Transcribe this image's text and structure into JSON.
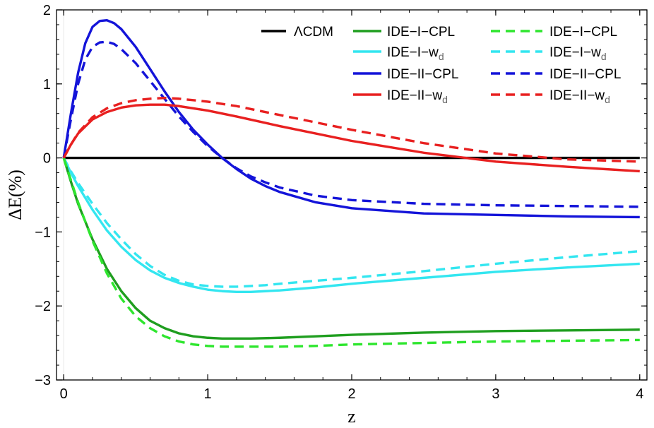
{
  "chart_data": {
    "type": "line",
    "xlabel": "z",
    "ylabel": "ΔE(%)",
    "xlim": [
      -0.05,
      4.05
    ],
    "ylim": [
      -3,
      2
    ],
    "xticks": [
      "0",
      "1",
      "2",
      "3",
      "4"
    ],
    "yticks": [
      "2",
      "1",
      "0",
      "−1",
      "−2",
      "−3"
    ],
    "legend_position": "top-right",
    "grid": false,
    "series": [
      {
        "key": "lcdm",
        "name": "ΛCDM",
        "label_main": "ΛCDM",
        "label_sub": "",
        "color": "#000000",
        "dashed": false,
        "x": [
          0,
          4
        ],
        "y": [
          0,
          0
        ]
      },
      {
        "key": "ide1_wd",
        "name": "IDE−I−wd",
        "label_main": "IDE−I−w",
        "label_sub": "d",
        "color": "#33e6f0",
        "dashed": false,
        "x": [
          0,
          0.05,
          0.1,
          0.2,
          0.3,
          0.4,
          0.5,
          0.6,
          0.7,
          0.8,
          0.9,
          1.0,
          1.1,
          1.2,
          1.3,
          1.4,
          1.5,
          1.75,
          2.0,
          2.5,
          3.0,
          3.5,
          4.0
        ],
        "y": [
          0,
          -0.2,
          -0.38,
          -0.7,
          -0.98,
          -1.2,
          -1.38,
          -1.52,
          -1.62,
          -1.69,
          -1.74,
          -1.78,
          -1.8,
          -1.81,
          -1.81,
          -1.8,
          -1.79,
          -1.75,
          -1.7,
          -1.62,
          -1.54,
          -1.48,
          -1.43
        ]
      },
      {
        "key": "ide1_wd_dash",
        "name": "IDE−I−wd",
        "label_main": "IDE−I−w",
        "label_sub": "d",
        "color": "#33e6f0",
        "dashed": true,
        "x": [
          0,
          0.05,
          0.1,
          0.2,
          0.3,
          0.4,
          0.5,
          0.6,
          0.7,
          0.8,
          0.9,
          1.0,
          1.1,
          1.2,
          1.3,
          1.4,
          1.5,
          1.75,
          2.0,
          2.5,
          3.0,
          3.5,
          4.0
        ],
        "y": [
          0,
          -0.18,
          -0.34,
          -0.62,
          -0.88,
          -1.1,
          -1.3,
          -1.46,
          -1.58,
          -1.66,
          -1.71,
          -1.73,
          -1.74,
          -1.74,
          -1.73,
          -1.72,
          -1.7,
          -1.66,
          -1.62,
          -1.53,
          -1.43,
          -1.34,
          -1.26
        ]
      },
      {
        "key": "ide1_cpl",
        "name": "IDE−I−CPL",
        "label_main": "IDE−I−CPL",
        "label_sub": "",
        "color": "#1f9e1f",
        "dashed": false,
        "x": [
          0,
          0.05,
          0.1,
          0.2,
          0.3,
          0.4,
          0.5,
          0.6,
          0.7,
          0.8,
          0.9,
          1.0,
          1.1,
          1.2,
          1.3,
          1.5,
          1.75,
          2.0,
          2.5,
          3.0,
          3.5,
          4.0
        ],
        "y": [
          0,
          -0.32,
          -0.62,
          -1.1,
          -1.5,
          -1.8,
          -2.03,
          -2.2,
          -2.3,
          -2.37,
          -2.41,
          -2.43,
          -2.44,
          -2.44,
          -2.44,
          -2.43,
          -2.41,
          -2.39,
          -2.36,
          -2.34,
          -2.33,
          -2.32
        ]
      },
      {
        "key": "ide1_cpl_dash",
        "name": "IDE−I−CPL",
        "label_main": "IDE−I−CPL",
        "label_sub": "",
        "color": "#2ee62e",
        "dashed": true,
        "x": [
          0,
          0.05,
          0.1,
          0.2,
          0.3,
          0.4,
          0.5,
          0.6,
          0.7,
          0.8,
          0.9,
          1.0,
          1.1,
          1.2,
          1.3,
          1.5,
          1.75,
          2.0,
          2.5,
          3.0,
          3.5,
          4.0
        ],
        "y": [
          0,
          -0.3,
          -0.6,
          -1.12,
          -1.56,
          -1.9,
          -2.14,
          -2.3,
          -2.41,
          -2.48,
          -2.52,
          -2.54,
          -2.55,
          -2.55,
          -2.55,
          -2.55,
          -2.54,
          -2.52,
          -2.5,
          -2.48,
          -2.47,
          -2.46
        ]
      },
      {
        "key": "ide2_cpl",
        "name": "IDE−II−CPL",
        "label_main": "IDE−II−CPL",
        "label_sub": "",
        "color": "#1414d9",
        "dashed": false,
        "x": [
          0,
          0.05,
          0.1,
          0.15,
          0.2,
          0.25,
          0.3,
          0.35,
          0.4,
          0.5,
          0.6,
          0.7,
          0.8,
          0.9,
          1.0,
          1.1,
          1.2,
          1.3,
          1.4,
          1.5,
          1.75,
          2.0,
          2.5,
          3.0,
          3.5,
          4.0
        ],
        "y": [
          0,
          0.6,
          1.15,
          1.55,
          1.77,
          1.85,
          1.86,
          1.82,
          1.74,
          1.5,
          1.2,
          0.9,
          0.62,
          0.38,
          0.18,
          0.0,
          -0.15,
          -0.28,
          -0.38,
          -0.46,
          -0.6,
          -0.68,
          -0.75,
          -0.77,
          -0.79,
          -0.8
        ]
      },
      {
        "key": "ide2_cpl_dash",
        "name": "IDE−II−CPL",
        "label_main": "IDE−II−CPL",
        "label_sub": "",
        "color": "#1414d9",
        "dashed": true,
        "x": [
          0,
          0.05,
          0.1,
          0.15,
          0.2,
          0.25,
          0.3,
          0.35,
          0.4,
          0.5,
          0.6,
          0.7,
          0.8,
          0.9,
          1.0,
          1.1,
          1.2,
          1.3,
          1.4,
          1.5,
          1.75,
          2.0,
          2.5,
          3.0,
          3.5,
          4.0
        ],
        "y": [
          0,
          0.52,
          1.0,
          1.33,
          1.5,
          1.56,
          1.57,
          1.54,
          1.47,
          1.28,
          1.04,
          0.8,
          0.56,
          0.35,
          0.16,
          0.0,
          -0.14,
          -0.25,
          -0.33,
          -0.4,
          -0.51,
          -0.57,
          -0.62,
          -0.64,
          -0.65,
          -0.66
        ]
      },
      {
        "key": "ide2_wd",
        "name": "IDE−II−wd",
        "label_main": "IDE−II−w",
        "label_sub": "d",
        "color": "#e82020",
        "dashed": false,
        "x": [
          0,
          0.05,
          0.1,
          0.2,
          0.3,
          0.4,
          0.5,
          0.6,
          0.7,
          0.8,
          1.0,
          1.2,
          1.5,
          2.0,
          2.5,
          3.0,
          3.5,
          4.0
        ],
        "y": [
          0,
          0.18,
          0.33,
          0.52,
          0.62,
          0.68,
          0.71,
          0.72,
          0.72,
          0.7,
          0.64,
          0.56,
          0.43,
          0.23,
          0.07,
          -0.05,
          -0.12,
          -0.18
        ]
      },
      {
        "key": "ide2_wd_dash",
        "name": "IDE−II−wd",
        "label_main": "IDE−II−w",
        "label_sub": "d",
        "color": "#e82020",
        "dashed": true,
        "x": [
          0,
          0.05,
          0.1,
          0.2,
          0.3,
          0.4,
          0.5,
          0.6,
          0.7,
          0.8,
          1.0,
          1.2,
          1.5,
          2.0,
          2.5,
          3.0,
          3.5,
          4.0
        ],
        "y": [
          0,
          0.18,
          0.34,
          0.55,
          0.67,
          0.74,
          0.78,
          0.8,
          0.81,
          0.8,
          0.76,
          0.7,
          0.58,
          0.38,
          0.2,
          0.06,
          -0.02,
          -0.05
        ]
      }
    ],
    "legend_order": [
      "lcdm",
      "ide1_cpl_dash",
      "ide1_wd",
      "ide1_wd_dash",
      "ide2_cpl",
      "ide2_cpl_dash",
      "ide2_wd",
      "ide2_wd_dash",
      "ide1_cpl"
    ]
  }
}
